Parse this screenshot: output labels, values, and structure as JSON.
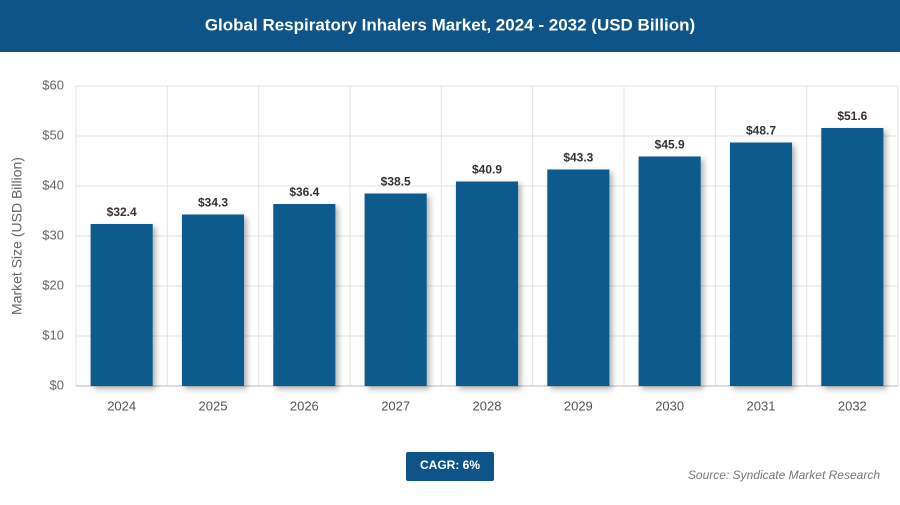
{
  "chart_data": {
    "type": "bar",
    "title": "Global Respiratory Inhalers Market, 2024 - 2032 (USD Billion)",
    "y_axis_label": "Market Size (USD Billion)",
    "categories": [
      "2024",
      "2025",
      "2026",
      "2027",
      "2028",
      "2029",
      "2030",
      "2031",
      "2032"
    ],
    "values": [
      32.4,
      34.3,
      36.4,
      38.5,
      40.9,
      43.3,
      45.9,
      48.7,
      51.6
    ],
    "value_labels": [
      "$32.4",
      "$34.3",
      "$36.4",
      "$38.5",
      "$40.9",
      "$43.3",
      "$45.9",
      "$48.7",
      "$51.6"
    ],
    "color": "#0b5a8c",
    "ylim": [
      0,
      60
    ],
    "yticks": [
      {
        "value": 0,
        "label": "$0"
      },
      {
        "value": 10,
        "label": "$10"
      },
      {
        "value": 20,
        "label": "$20"
      },
      {
        "value": 30,
        "label": "$30"
      },
      {
        "value": 40,
        "label": "$40"
      },
      {
        "value": 50,
        "label": "$50"
      },
      {
        "value": 60,
        "label": "$60"
      }
    ],
    "grid": true,
    "cagr": "CAGR: 6%",
    "source": "Source: Syndicate Market Research"
  }
}
